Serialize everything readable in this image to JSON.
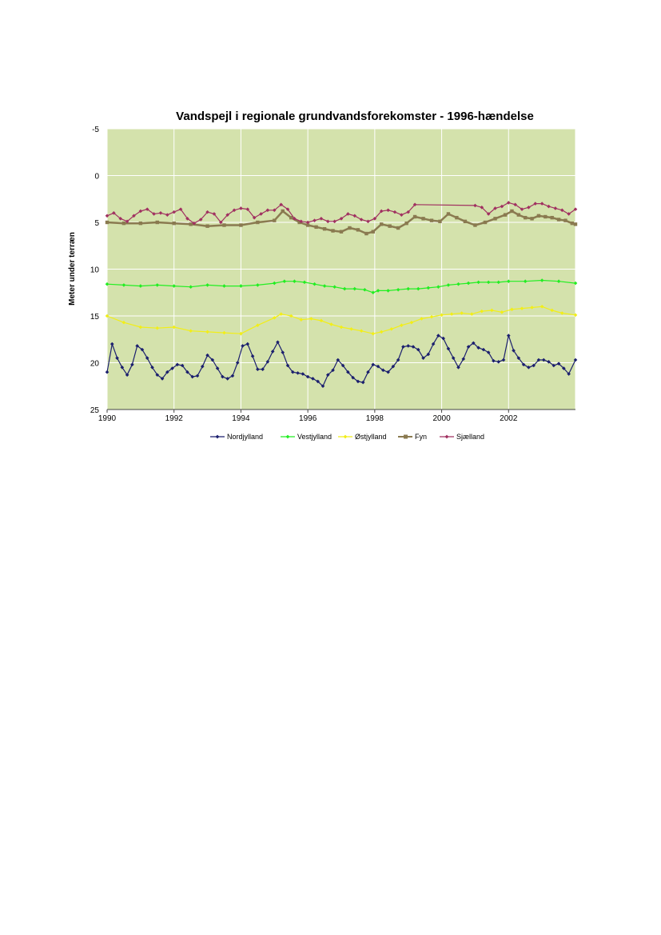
{
  "chart_data": {
    "type": "line",
    "title": "Vandspejl i regionale grundvandsforekomster  - 1996-hændelse",
    "xlabel": "",
    "ylabel": "Meter under terræn",
    "xlim": [
      1990,
      2004
    ],
    "ylim": [
      -5,
      25
    ],
    "y_inverted": true,
    "x_ticks": [
      1990,
      1992,
      1994,
      1996,
      1998,
      2000,
      2002
    ],
    "y_ticks": [
      -5,
      0,
      5,
      10,
      15,
      20,
      25
    ],
    "grid": true,
    "plot_background": "#d4e2ac",
    "gridline_color": "#ffffff",
    "legend_position": "bottom",
    "series": [
      {
        "name": "Nordjylland",
        "color": "#1b1f6e",
        "marker": "diamond",
        "x": [
          1990.0,
          1990.15,
          1990.3,
          1990.45,
          1990.6,
          1990.75,
          1990.9,
          1991.05,
          1991.2,
          1991.35,
          1991.5,
          1991.65,
          1991.8,
          1991.95,
          1992.1,
          1992.25,
          1992.4,
          1992.55,
          1992.7,
          1992.85,
          1993.0,
          1993.15,
          1993.3,
          1993.45,
          1993.6,
          1993.75,
          1993.9,
          1994.05,
          1994.2,
          1994.35,
          1994.5,
          1994.65,
          1994.8,
          1994.95,
          1995.1,
          1995.25,
          1995.4,
          1995.55,
          1995.7,
          1995.85,
          1996.0,
          1996.15,
          1996.3,
          1996.45,
          1996.6,
          1996.75,
          1996.9,
          1997.05,
          1997.2,
          1997.35,
          1997.5,
          1997.65,
          1997.8,
          1997.95,
          1998.1,
          1998.25,
          1998.4,
          1998.55,
          1998.7,
          1998.85,
          1999.0,
          1999.15,
          1999.3,
          1999.45,
          1999.6,
          1999.75,
          1999.9,
          2000.05,
          2000.2,
          2000.35,
          2000.5,
          2000.65,
          2000.8,
          2000.95,
          2001.1,
          2001.25,
          2001.4,
          2001.55,
          2001.7,
          2001.85,
          2002.0,
          2002.15,
          2002.3,
          2002.45,
          2002.6,
          2002.75,
          2002.9,
          2003.05,
          2003.2,
          2003.35,
          2003.5,
          2003.65,
          2003.8,
          2004.0
        ],
        "y": [
          21.0,
          18.0,
          19.5,
          20.5,
          21.3,
          20.2,
          18.2,
          18.6,
          19.5,
          20.5,
          21.3,
          21.7,
          21.0,
          20.6,
          20.2,
          20.3,
          21.0,
          21.5,
          21.4,
          20.4,
          19.2,
          19.7,
          20.6,
          21.5,
          21.7,
          21.4,
          20.0,
          18.2,
          18.0,
          19.3,
          20.7,
          20.7,
          19.9,
          18.8,
          17.8,
          18.9,
          20.3,
          21.0,
          21.1,
          21.2,
          21.5,
          21.7,
          22.0,
          22.5,
          21.3,
          20.8,
          19.7,
          20.3,
          21.0,
          21.6,
          22.0,
          22.1,
          21.0,
          20.2,
          20.4,
          20.8,
          21.0,
          20.4,
          19.7,
          18.3,
          18.2,
          18.3,
          18.6,
          19.5,
          19.1,
          18.0,
          17.1,
          17.4,
          18.5,
          19.5,
          20.5,
          19.6,
          18.3,
          17.9,
          18.4,
          18.6,
          18.9,
          19.8,
          19.9,
          19.7,
          17.1,
          18.7,
          19.5,
          20.2,
          20.5,
          20.3,
          19.7,
          19.7,
          19.9,
          20.3,
          20.1,
          20.6,
          21.2,
          19.7
        ]
      },
      {
        "name": "Vestjylland",
        "color": "#22ee22",
        "marker": "diamond",
        "x": [
          1990.0,
          1990.5,
          1991.0,
          1991.5,
          1992.0,
          1992.5,
          1993.0,
          1993.5,
          1994.0,
          1994.5,
          1995.0,
          1995.3,
          1995.6,
          1995.9,
          1996.2,
          1996.5,
          1996.8,
          1997.1,
          1997.4,
          1997.7,
          1997.95,
          1998.1,
          1998.4,
          1998.7,
          1999.0,
          1999.3,
          1999.6,
          1999.9,
          2000.2,
          2000.5,
          2000.8,
          2001.1,
          2001.4,
          2001.7,
          2002.0,
          2002.5,
          2003.0,
          2003.5,
          2004.0
        ],
        "y": [
          11.6,
          11.7,
          11.8,
          11.7,
          11.8,
          11.9,
          11.7,
          11.8,
          11.8,
          11.7,
          11.5,
          11.3,
          11.3,
          11.4,
          11.6,
          11.8,
          11.9,
          12.1,
          12.1,
          12.2,
          12.5,
          12.3,
          12.3,
          12.2,
          12.1,
          12.1,
          12.0,
          11.9,
          11.7,
          11.6,
          11.5,
          11.4,
          11.4,
          11.4,
          11.3,
          11.3,
          11.2,
          11.3,
          11.5
        ]
      },
      {
        "name": "Østjylland",
        "color": "#f2ee18",
        "marker": "diamond",
        "x": [
          1990.0,
          1990.5,
          1991.0,
          1991.5,
          1992.0,
          1992.5,
          1993.0,
          1993.5,
          1994.0,
          1994.5,
          1995.0,
          1995.2,
          1995.5,
          1995.8,
          1996.1,
          1996.4,
          1996.7,
          1997.0,
          1997.3,
          1997.6,
          1997.95,
          1998.2,
          1998.5,
          1998.8,
          1999.1,
          1999.4,
          1999.7,
          2000.0,
          2000.3,
          2000.6,
          2000.9,
          2001.2,
          2001.5,
          2001.8,
          2002.1,
          2002.4,
          2002.7,
          2003.0,
          2003.3,
          2003.6,
          2004.0
        ],
        "y": [
          15.0,
          15.7,
          16.2,
          16.3,
          16.2,
          16.6,
          16.7,
          16.8,
          16.9,
          16.0,
          15.2,
          14.8,
          15.0,
          15.4,
          15.3,
          15.5,
          15.9,
          16.2,
          16.4,
          16.6,
          16.9,
          16.7,
          16.4,
          16.0,
          15.7,
          15.3,
          15.1,
          14.9,
          14.8,
          14.7,
          14.8,
          14.5,
          14.4,
          14.6,
          14.3,
          14.2,
          14.1,
          14.0,
          14.4,
          14.7,
          14.9
        ]
      },
      {
        "name": "Fyn",
        "color": "#8a7a50",
        "marker": "square",
        "x": [
          1990.0,
          1990.5,
          1991.0,
          1991.5,
          1992.0,
          1992.5,
          1993.0,
          1993.5,
          1994.0,
          1994.5,
          1995.0,
          1995.25,
          1995.5,
          1995.75,
          1996.0,
          1996.25,
          1996.5,
          1996.75,
          1997.0,
          1997.25,
          1997.5,
          1997.75,
          1997.95,
          1998.2,
          1998.45,
          1998.7,
          1998.95,
          1999.2,
          1999.45,
          1999.7,
          1999.95,
          2000.2,
          2000.45,
          2000.7,
          2001.0,
          2001.3,
          2001.6,
          2001.9,
          2002.1,
          2002.3,
          2002.5,
          2002.7,
          2002.9,
          2003.1,
          2003.3,
          2003.5,
          2003.7,
          2003.9,
          2004.0
        ],
        "y": [
          5.0,
          5.1,
          5.1,
          5.0,
          5.1,
          5.2,
          5.4,
          5.3,
          5.3,
          5.0,
          4.8,
          3.8,
          4.5,
          5.0,
          5.3,
          5.5,
          5.7,
          5.9,
          6.0,
          5.6,
          5.8,
          6.2,
          6.0,
          5.2,
          5.4,
          5.6,
          5.1,
          4.4,
          4.6,
          4.8,
          4.9,
          4.1,
          4.5,
          4.9,
          5.3,
          5.0,
          4.6,
          4.2,
          3.8,
          4.2,
          4.5,
          4.6,
          4.3,
          4.4,
          4.5,
          4.7,
          4.8,
          5.1,
          5.2
        ]
      },
      {
        "name": "Sjælland",
        "color": "#a03060",
        "marker": "diamond",
        "x": [
          1990.0,
          1990.2,
          1990.4,
          1990.6,
          1990.8,
          1991.0,
          1991.2,
          1991.4,
          1991.6,
          1991.8,
          1992.0,
          1992.2,
          1992.4,
          1992.6,
          1992.8,
          1993.0,
          1993.2,
          1993.4,
          1993.6,
          1993.8,
          1994.0,
          1994.2,
          1994.4,
          1994.6,
          1994.8,
          1995.0,
          1995.2,
          1995.4,
          1995.6,
          1995.8,
          1996.0,
          1996.2,
          1996.4,
          1996.6,
          1996.8,
          1997.0,
          1997.2,
          1997.4,
          1997.6,
          1997.8,
          1998.0,
          1998.2,
          1998.4,
          1998.6,
          1998.8,
          1999.0,
          1999.2,
          2001.0,
          2001.2,
          2001.4,
          2001.6,
          2001.8,
          2002.0,
          2002.2,
          2002.4,
          2002.6,
          2002.8,
          2003.0,
          2003.2,
          2003.4,
          2003.6,
          2003.8,
          2004.0
        ],
        "y": [
          4.3,
          4.0,
          4.6,
          4.9,
          4.3,
          3.8,
          3.6,
          4.1,
          4.0,
          4.2,
          3.9,
          3.6,
          4.6,
          5.1,
          4.7,
          3.9,
          4.1,
          5.0,
          4.2,
          3.7,
          3.5,
          3.6,
          4.5,
          4.1,
          3.7,
          3.7,
          3.1,
          3.6,
          4.6,
          4.9,
          5.0,
          4.8,
          4.6,
          4.9,
          4.9,
          4.6,
          4.1,
          4.3,
          4.7,
          4.9,
          4.6,
          3.8,
          3.7,
          3.9,
          4.2,
          3.9,
          3.1,
          3.2,
          3.4,
          4.1,
          3.5,
          3.3,
          2.9,
          3.1,
          3.6,
          3.4,
          3.0,
          3.0,
          3.3,
          3.5,
          3.7,
          4.1,
          3.6
        ]
      }
    ]
  }
}
